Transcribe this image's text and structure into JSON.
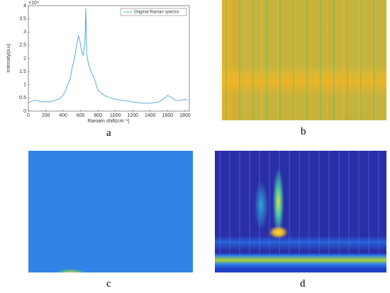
{
  "chart_data": {
    "type": "line",
    "xlabel": "Ramam shift(cm⁻¹)",
    "ylabel": "Intensity(a.u)",
    "y_multiplier": "×10⁴",
    "x": [
      0,
      20,
      50,
      100,
      150,
      200,
      250,
      300,
      350,
      400,
      430,
      450,
      480,
      500,
      530,
      560,
      575,
      590,
      610,
      630,
      650,
      660,
      670,
      690,
      720,
      750,
      780,
      800,
      850,
      900,
      950,
      1000,
      1100,
      1200,
      1300,
      1400,
      1500,
      1550,
      1600,
      1650,
      1700,
      1750,
      1800,
      1830
    ],
    "series": [
      {
        "name": "Original Raman spectra",
        "color": "#4aa3d8",
        "values": [
          0.3,
          0.35,
          0.4,
          0.4,
          0.35,
          0.35,
          0.35,
          0.4,
          0.45,
          0.6,
          0.8,
          1.0,
          1.2,
          1.6,
          2.0,
          2.6,
          2.85,
          2.7,
          2.3,
          2.1,
          2.6,
          3.9,
          2.2,
          1.8,
          1.5,
          1.3,
          1.0,
          0.8,
          0.65,
          0.55,
          0.5,
          0.45,
          0.4,
          0.35,
          0.3,
          0.3,
          0.35,
          0.45,
          0.6,
          0.5,
          0.4,
          0.4,
          0.45,
          0.4
        ]
      }
    ],
    "xlim": [
      0,
      1850
    ],
    "xticks": [
      0,
      200,
      400,
      600,
      800,
      1000,
      1200,
      1400,
      1600,
      1800
    ],
    "ylim": [
      0,
      4
    ],
    "yticks": [
      0,
      0.5,
      1,
      1.5,
      2,
      2.5,
      3,
      3.5,
      4
    ],
    "legend": "upper right"
  },
  "panel_labels": [
    "a",
    "b",
    "c",
    "d"
  ]
}
